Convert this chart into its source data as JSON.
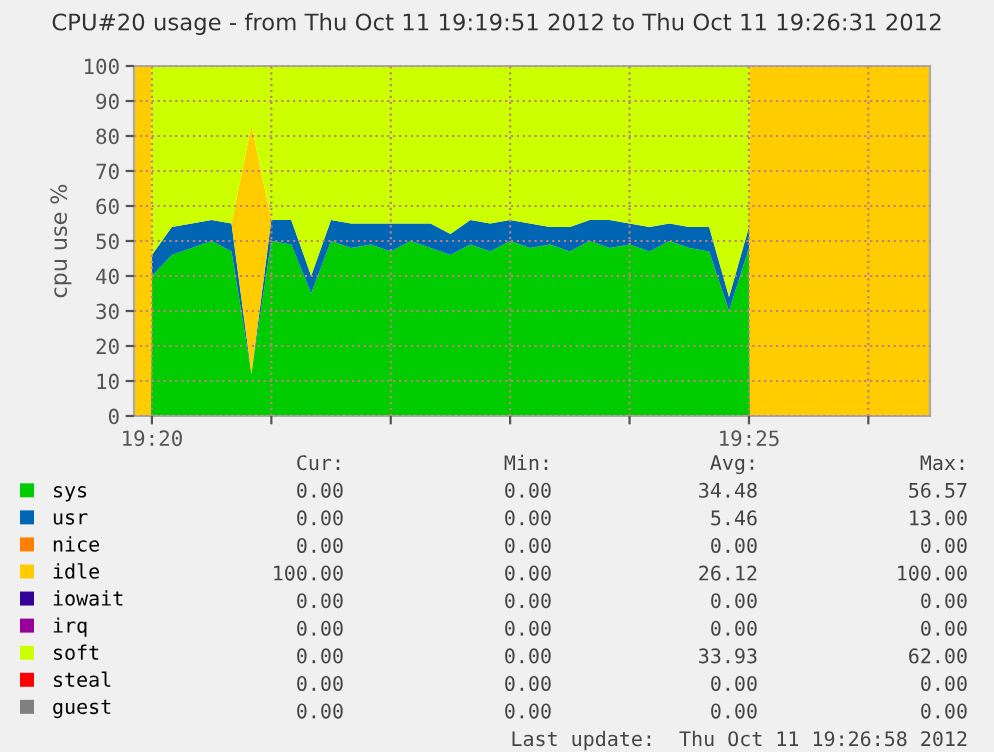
{
  "chart_data": {
    "type": "area",
    "stacked": true,
    "title": "CPU#20 usage - from Thu Oct 11 19:19:51 2012 to Thu Oct 11 19:26:31 2012",
    "ylabel": "cpu use %",
    "x": [
      19.33083,
      19.33319,
      19.33333,
      19.33611,
      19.33889,
      19.34167,
      19.34444,
      19.34722,
      19.35,
      19.35278,
      19.35556,
      19.35833,
      19.36111,
      19.36389,
      19.36667,
      19.36944,
      19.37222,
      19.375,
      19.37778,
      19.38056,
      19.38333,
      19.38611,
      19.38889,
      19.39167,
      19.39444,
      19.39722,
      19.4,
      19.40278,
      19.40556,
      19.40833,
      19.41111,
      19.41389,
      19.41667,
      19.41681,
      19.44194
    ],
    "series": [
      {
        "name": "sys",
        "color": "#00cc00",
        "values": [
          0,
          0,
          40,
          46,
          48,
          50,
          47,
          12,
          50,
          49,
          35,
          50,
          48,
          49,
          47,
          50,
          48,
          46,
          49,
          47,
          50,
          48,
          49,
          47,
          50,
          48,
          49,
          47,
          50,
          48,
          47,
          30,
          48,
          0,
          0
        ]
      },
      {
        "name": "usr",
        "color": "#0066b3",
        "values": [
          0,
          0,
          6,
          8,
          7,
          6,
          8,
          0,
          6,
          7,
          5,
          6,
          7,
          6,
          8,
          5,
          7,
          6,
          7,
          8,
          6,
          7,
          5,
          7,
          6,
          8,
          6,
          7,
          5,
          6,
          7,
          4,
          6,
          0,
          0
        ]
      },
      {
        "name": "nice",
        "color": "#ff8000",
        "values": [
          null,
          null,
          null,
          null,
          null,
          null,
          null,
          null,
          null,
          null,
          null,
          null,
          null,
          null,
          null,
          null,
          null,
          null,
          null,
          null,
          null,
          null,
          null,
          null,
          null,
          null,
          null,
          null,
          null,
          null,
          null,
          null,
          null,
          null,
          null
        ]
      },
      {
        "name": "idle",
        "color": "#ffcc00",
        "values": [
          100,
          100,
          0,
          0,
          0,
          0,
          0,
          71,
          0,
          0,
          0,
          0,
          0,
          0,
          0,
          0,
          0,
          0,
          0,
          0,
          0,
          0,
          0,
          0,
          0,
          0,
          0,
          0,
          0,
          0,
          0,
          0,
          0,
          100,
          100
        ]
      },
      {
        "name": "iowait",
        "color": "#330099",
        "values": [
          null,
          null,
          null,
          null,
          null,
          null,
          null,
          null,
          null,
          null,
          null,
          null,
          null,
          null,
          null,
          null,
          null,
          null,
          null,
          null,
          null,
          null,
          null,
          null,
          null,
          null,
          null,
          null,
          null,
          null,
          null,
          null,
          null,
          null,
          null
        ]
      },
      {
        "name": "irq",
        "color": "#990099",
        "values": [
          null,
          null,
          null,
          null,
          null,
          null,
          null,
          null,
          null,
          null,
          null,
          null,
          null,
          null,
          null,
          null,
          null,
          null,
          null,
          null,
          null,
          null,
          null,
          null,
          null,
          null,
          null,
          null,
          null,
          null,
          null,
          null,
          null,
          null,
          null
        ]
      },
      {
        "name": "soft",
        "color": "#ccff00",
        "values": [
          0,
          0,
          54,
          46,
          45,
          44,
          45,
          17,
          44,
          44,
          60,
          44,
          45,
          45,
          45,
          45,
          45,
          48,
          44,
          45,
          44,
          45,
          46,
          46,
          44,
          44,
          45,
          46,
          45,
          46,
          46,
          66,
          46,
          0,
          0
        ]
      },
      {
        "name": "steal",
        "color": "#ff0000",
        "values": [
          null,
          null,
          null,
          null,
          null,
          null,
          null,
          null,
          null,
          null,
          null,
          null,
          null,
          null,
          null,
          null,
          null,
          null,
          null,
          null,
          null,
          null,
          null,
          null,
          null,
          null,
          null,
          null,
          null,
          null,
          null,
          null,
          null,
          null,
          null
        ]
      },
      {
        "name": "guest",
        "color": "#808080",
        "values": [
          null,
          null,
          null,
          null,
          null,
          null,
          null,
          null,
          null,
          null,
          null,
          null,
          null,
          null,
          null,
          null,
          null,
          null,
          null,
          null,
          null,
          null,
          null,
          null,
          null,
          null,
          null,
          null,
          null,
          null,
          null,
          null,
          null,
          null,
          null
        ]
      }
    ],
    "xlim": [
      19.33083,
      19.44194
    ],
    "xticks": [
      {
        "value": 19.33333,
        "label": "19:20"
      },
      {
        "value": 19.35,
        "label": null
      },
      {
        "value": 19.36667,
        "label": null
      },
      {
        "value": 19.38333,
        "label": null
      },
      {
        "value": 19.4,
        "label": null
      },
      {
        "value": 19.41667,
        "label": "19:25"
      },
      {
        "value": 19.43333,
        "label": null
      }
    ],
    "ylim": [
      0,
      100
    ],
    "yticks": [
      0,
      10,
      20,
      30,
      40,
      50,
      60,
      70,
      80,
      90,
      100
    ],
    "grid": true,
    "legend": "bottom",
    "annotations": [
      "Cur:",
      "Min:",
      "Avg:",
      "Max:",
      "0.00",
      "0.00",
      "34.48",
      "56.57",
      "0.00",
      "0.00",
      "5.46",
      "13.00",
      "0.00",
      "0.00",
      "0.00",
      "0.00",
      "100.00",
      "0.00",
      "26.12",
      "100.00",
      "0.00",
      "0.00",
      "0.00",
      "0.00",
      "0.00",
      "0.00",
      "0.00",
      "0.00",
      "0.00",
      "0.00",
      "33.93",
      "62.00",
      "0.00",
      "0.00",
      "0.00",
      "0.00",
      "0.00",
      "0.00",
      "0.00",
      "0.00",
      "Last update:  Thu Oct 11 19:26:58 2012"
    ]
  }
}
